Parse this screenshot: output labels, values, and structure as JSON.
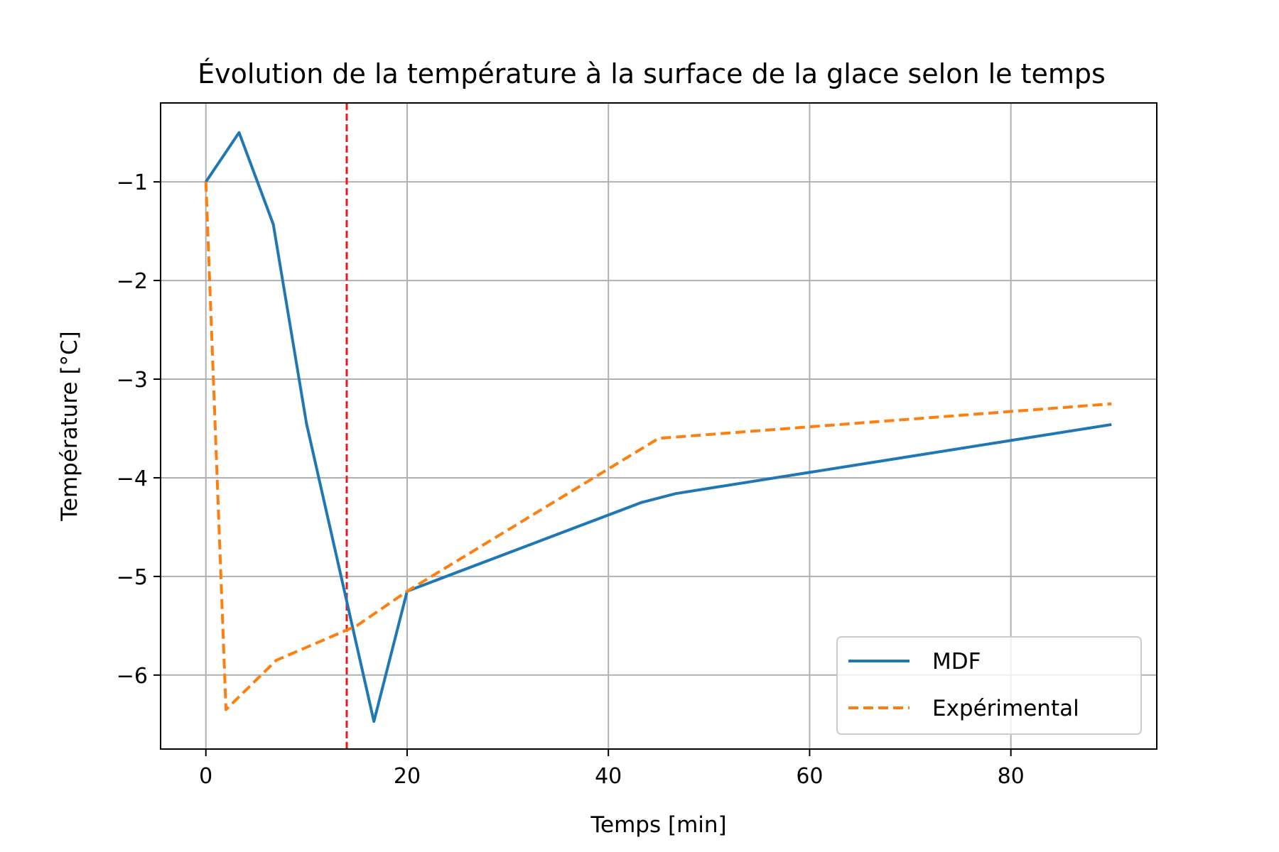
{
  "chart_data": {
    "type": "line",
    "title": "Évolution de la température à la surface de la glace selon le temps",
    "xlabel": "Temps [min]",
    "ylabel": "Température [°C]",
    "xlim": [
      -4.5,
      94.5
    ],
    "ylim": [
      -6.75,
      -0.2
    ],
    "xticks": [
      0,
      20,
      40,
      60,
      80
    ],
    "yticks": [
      -1,
      -2,
      -3,
      -4,
      -5,
      -6
    ],
    "xtick_labels": [
      "0",
      "20",
      "40",
      "60",
      "80"
    ],
    "ytick_labels": [
      "−1",
      "−2",
      "−3",
      "−4",
      "−5",
      "−6"
    ],
    "grid": true,
    "legend_position": "lower-right",
    "series": [
      {
        "name": "MDF",
        "style": "solid",
        "color": "#1f77b4",
        "x": [
          0,
          3.3,
          6.7,
          10,
          16.7,
          20,
          43.3,
          46.7,
          90
        ],
        "y": [
          -1.0,
          -0.5,
          -1.43,
          -3.45,
          -6.47,
          -5.15,
          -4.25,
          -4.16,
          -3.46
        ]
      },
      {
        "name": "Expérimental",
        "style": "dashed",
        "color": "#ff7f0e",
        "x": [
          0,
          2,
          7,
          15,
          20,
          45,
          90
        ],
        "y": [
          -1.0,
          -6.35,
          -5.85,
          -5.5,
          -5.15,
          -3.6,
          -3.25
        ]
      }
    ],
    "annotations": [
      {
        "type": "vline",
        "x": 14,
        "color": "#e41a1c",
        "style": "dashed"
      }
    ]
  }
}
